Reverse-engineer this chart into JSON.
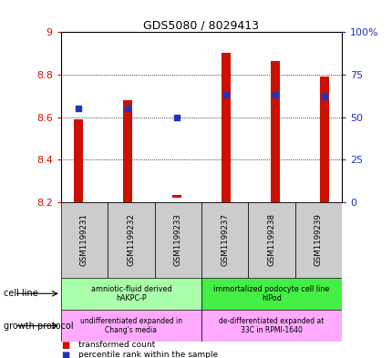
{
  "title": "GDS5080 / 8029413",
  "samples": [
    "GSM1199231",
    "GSM1199232",
    "GSM1199233",
    "GSM1199237",
    "GSM1199238",
    "GSM1199239"
  ],
  "transformed_count_bottom": [
    8.2,
    8.2,
    8.22,
    8.2,
    8.2,
    8.2
  ],
  "transformed_count_top": [
    8.59,
    8.68,
    8.235,
    8.905,
    8.865,
    8.79
  ],
  "percentile_rank": [
    55,
    55,
    50,
    63,
    63,
    62
  ],
  "ylim_left": [
    8.2,
    9.0
  ],
  "ylim_right": [
    0,
    100
  ],
  "yticks_left": [
    8.2,
    8.4,
    8.6,
    8.8,
    9.0
  ],
  "ytick_labels_left": [
    "8.2",
    "8.4",
    "8.6",
    "8.8",
    "9"
  ],
  "yticks_right": [
    0,
    25,
    50,
    75,
    100
  ],
  "ytick_labels_right": [
    "0",
    "25",
    "50",
    "75",
    "100%"
  ],
  "bar_color": "#cc1100",
  "dot_color": "#2233bb",
  "grid_color": "#000000",
  "cell_line_groups": [
    {
      "label": "amniotic-fluid derived\nhAKPC-P",
      "start": 0,
      "end": 3,
      "color": "#aaffaa"
    },
    {
      "label": "immortalized podocyte cell line\nhlPod",
      "start": 3,
      "end": 6,
      "color": "#44ee44"
    }
  ],
  "growth_protocol_groups": [
    {
      "label": "undifferentiated expanded in\nChang's media",
      "start": 0,
      "end": 3,
      "color": "#ffaaff"
    },
    {
      "label": "de-differentiated expanded at\n33C in RPMI-1640",
      "start": 3,
      "end": 6,
      "color": "#ffaaff"
    }
  ],
  "legend_items": [
    {
      "label": "transformed count",
      "color": "#cc1100"
    },
    {
      "label": "percentile rank within the sample",
      "color": "#2233bb"
    }
  ],
  "tick_label_color_left": "#cc1100",
  "tick_label_color_right": "#2233bb",
  "bar_width": 0.18
}
